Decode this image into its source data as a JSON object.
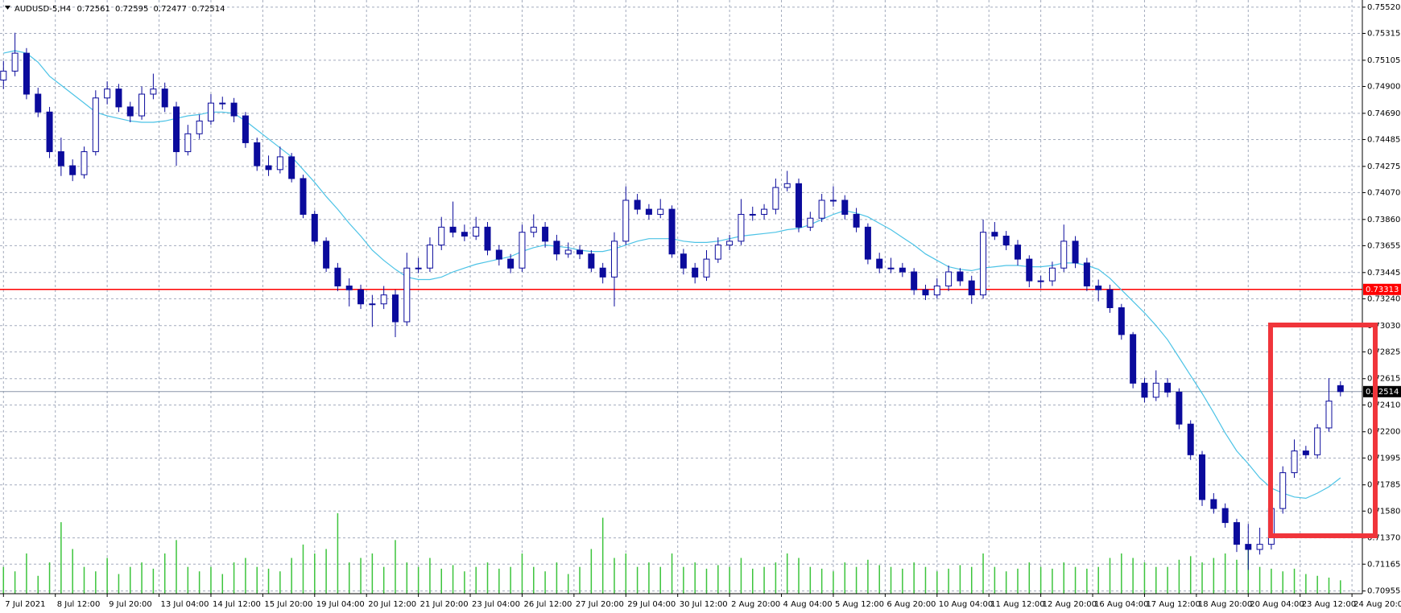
{
  "chart_data": {
    "type": "candlestick",
    "symbol": "AUDUSD-5,H4",
    "grid": true,
    "xlim": [
      -0.3,
      117.9
    ],
    "ylim": [
      0.70934,
      0.75576
    ],
    "xticks": [
      {
        "value": 0,
        "label": "7 Jul 2021"
      },
      {
        "value": 4.5,
        "label": "8 Jul 12:00"
      },
      {
        "value": 9,
        "label": "9 Jul 20:00"
      },
      {
        "value": 13.5,
        "label": "13 Jul 04:00"
      },
      {
        "value": 18,
        "label": "14 Jul 12:00"
      },
      {
        "value": 22.5,
        "label": "15 Jul 20:00"
      },
      {
        "value": 27,
        "label": "19 Jul 04:00"
      },
      {
        "value": 31.5,
        "label": "20 Jul 12:00"
      },
      {
        "value": 36,
        "label": "21 Jul 20:00"
      },
      {
        "value": 40.5,
        "label": "23 Jul 04:00"
      },
      {
        "value": 45,
        "label": "26 Jul 12:00"
      },
      {
        "value": 49.5,
        "label": "27 Jul 20:00"
      },
      {
        "value": 54,
        "label": "29 Jul 04:00"
      },
      {
        "value": 58.5,
        "label": "30 Jul 12:00"
      },
      {
        "value": 63,
        "label": "2 Aug 20:00"
      },
      {
        "value": 67.5,
        "label": "4 Aug 04:00"
      },
      {
        "value": 72,
        "label": "5 Aug 12:00"
      },
      {
        "value": 76.5,
        "label": "6 Aug 20:00"
      },
      {
        "value": 81,
        "label": "10 Aug 04:00"
      },
      {
        "value": 85.5,
        "label": "11 Aug 12:00"
      },
      {
        "value": 90,
        "label": "12 Aug 20:00"
      },
      {
        "value": 94.5,
        "label": "16 Aug 04:00"
      },
      {
        "value": 99,
        "label": "17 Aug 12:00"
      },
      {
        "value": 103.5,
        "label": "18 Aug 20:00"
      },
      {
        "value": 108,
        "label": "20 Aug 04:00"
      },
      {
        "value": 112.5,
        "label": "23 Aug 12:00"
      },
      {
        "value": 117,
        "label": "24 Aug 20:00"
      }
    ],
    "yticks": [
      {
        "value": 0.7552,
        "label": "0.75520"
      },
      0.75315,
      0.75105,
      {
        "value": 0.749,
        "label": "0.74900"
      },
      {
        "value": 0.7469,
        "label": "0.74690"
      },
      0.74485,
      0.74275,
      {
        "value": 0.7407,
        "label": "0.74070"
      },
      {
        "value": 0.7386,
        "label": "0.73860"
      },
      0.73655,
      0.73445,
      {
        "value": 0.7324,
        "label": "0.73240"
      },
      {
        "value": 0.7303,
        "label": "0.73030"
      },
      0.72825,
      0.72615,
      {
        "value": 0.7241,
        "label": "0.72410"
      },
      {
        "value": 0.722,
        "label": "0.72200"
      },
      0.71995,
      0.71785,
      {
        "value": 0.7158,
        "label": "0.71580"
      },
      {
        "value": 0.7137,
        "label": "0.71370"
      },
      0.71165,
      0.70955
    ],
    "bull_color": "#ffffff",
    "bear_color": "#0b0b9c",
    "outline_color": "#0b0b9c",
    "open": [
      0.7495,
      0.7502,
      0.7516,
      0.7484,
      0.747,
      0.7439,
      0.7428,
      0.7421,
      0.7439,
      0.7481,
      0.7488,
      0.7474,
      0.7467,
      0.7484,
      0.7488,
      0.7474,
      0.7439,
      0.7453,
      0.7463,
      0.7477,
      0.7477,
      0.7467,
      0.7446,
      0.7428,
      0.7425,
      0.7435,
      0.7418,
      0.739,
      0.7369,
      0.7348,
      0.7334,
      0.7331,
      0.732,
      0.732,
      0.7327,
      0.7306,
      0.7348,
      0.7348,
      0.7366,
      0.738,
      0.7376,
      0.7373,
      0.738,
      0.7362,
      0.7355,
      0.7348,
      0.7376,
      0.738,
      0.7369,
      0.7359,
      0.7362,
      0.7359,
      0.7348,
      0.7341,
      0.7369,
      0.7401,
      0.7394,
      0.739,
      0.7394,
      0.7359,
      0.7348,
      0.7341,
      0.7355,
      0.7366,
      0.7369,
      0.739,
      0.739,
      0.7394,
      0.7411,
      0.7414,
      0.738,
      0.7387,
      0.7401,
      0.7401,
      0.739,
      0.738,
      0.7355,
      0.7348,
      0.7348,
      0.7345,
      0.7331,
      0.7327,
      0.7334,
      0.7345,
      0.7338,
      0.7327,
      0.7376,
      0.7373,
      0.7366,
      0.7355,
      0.7338,
      0.7338,
      0.7348,
      0.7369,
      0.7352,
      0.7334,
      0.7331,
      0.7317,
      0.7296,
      0.7258,
      0.7247,
      0.7258,
      0.7251,
      0.7226,
      0.7202,
      0.7167,
      0.716,
      0.7149,
      0.7132,
      0.7128,
      0.7132,
      0.716,
      0.7188,
      0.7205,
      0.7202,
      0.7223,
      0.72561
    ],
    "high": [
      0.751,
      0.7532,
      0.752,
      0.7489,
      0.7474,
      0.745,
      0.7433,
      0.7443,
      0.7487,
      0.7494,
      0.7492,
      0.7478,
      0.749,
      0.75,
      0.7493,
      0.7478,
      0.746,
      0.7468,
      0.7484,
      0.7482,
      0.7481,
      0.747,
      0.745,
      0.7436,
      0.7443,
      0.7438,
      0.7421,
      0.7393,
      0.7372,
      0.7352,
      0.734,
      0.7335,
      0.7327,
      0.7334,
      0.7331,
      0.736,
      0.7356,
      0.7372,
      0.7388,
      0.74,
      0.7382,
      0.7388,
      0.7384,
      0.7366,
      0.7359,
      0.7382,
      0.739,
      0.7384,
      0.7374,
      0.7368,
      0.7366,
      0.7362,
      0.7352,
      0.7376,
      0.7412,
      0.7406,
      0.7398,
      0.7402,
      0.7397,
      0.7363,
      0.7352,
      0.7362,
      0.7372,
      0.7374,
      0.7402,
      0.7396,
      0.7398,
      0.7418,
      0.7424,
      0.7418,
      0.7392,
      0.7406,
      0.7412,
      0.7405,
      0.7395,
      0.7383,
      0.736,
      0.7356,
      0.7352,
      0.7348,
      0.7335,
      0.734,
      0.735,
      0.7348,
      0.7342,
      0.7386,
      0.7384,
      0.7377,
      0.737,
      0.7358,
      0.7342,
      0.7353,
      0.7382,
      0.7373,
      0.7356,
      0.7339,
      0.7335,
      0.732,
      0.7298,
      0.7262,
      0.7268,
      0.7262,
      0.7254,
      0.7229,
      0.7205,
      0.7172,
      0.7164,
      0.7152,
      0.7148,
      0.7145,
      0.7166,
      0.7193,
      0.7214,
      0.7209,
      0.7226,
      0.7262,
      0.72595
    ],
    "low": [
      0.7488,
      0.7498,
      0.748,
      0.7466,
      0.7434,
      0.742,
      0.7416,
      0.7418,
      0.7436,
      0.7476,
      0.747,
      0.7462,
      0.7464,
      0.748,
      0.747,
      0.7428,
      0.7436,
      0.7449,
      0.746,
      0.7472,
      0.7462,
      0.7442,
      0.7424,
      0.742,
      0.7422,
      0.7415,
      0.7387,
      0.7366,
      0.7345,
      0.733,
      0.7318,
      0.7316,
      0.7302,
      0.7316,
      0.7294,
      0.7303,
      0.7344,
      0.7345,
      0.7362,
      0.7372,
      0.7369,
      0.737,
      0.7358,
      0.735,
      0.7344,
      0.7345,
      0.7372,
      0.7364,
      0.7354,
      0.7356,
      0.7355,
      0.7345,
      0.7336,
      0.7318,
      0.7366,
      0.739,
      0.7386,
      0.7387,
      0.7356,
      0.7343,
      0.7336,
      0.7338,
      0.7352,
      0.7362,
      0.7366,
      0.7385,
      0.7386,
      0.739,
      0.7408,
      0.7376,
      0.7377,
      0.7384,
      0.7396,
      0.7386,
      0.7376,
      0.7351,
      0.7344,
      0.7344,
      0.7341,
      0.7327,
      0.7323,
      0.7324,
      0.733,
      0.7334,
      0.732,
      0.7324,
      0.737,
      0.7362,
      0.735,
      0.7333,
      0.7332,
      0.7334,
      0.7345,
      0.7348,
      0.733,
      0.7322,
      0.7313,
      0.7292,
      0.7254,
      0.7243,
      0.7244,
      0.7247,
      0.7222,
      0.7198,
      0.7162,
      0.7156,
      0.7145,
      0.7126,
      0.7112,
      0.7124,
      0.7128,
      0.7156,
      0.7184,
      0.7199,
      0.7199,
      0.722,
      0.72477
    ],
    "close": [
      0.7502,
      0.7516,
      0.7484,
      0.747,
      0.7439,
      0.7428,
      0.7421,
      0.7439,
      0.7481,
      0.7488,
      0.7474,
      0.7467,
      0.7484,
      0.7488,
      0.7474,
      0.7439,
      0.7453,
      0.7463,
      0.7477,
      0.7477,
      0.7467,
      0.7446,
      0.7428,
      0.7425,
      0.7435,
      0.7418,
      0.739,
      0.7369,
      0.7348,
      0.7334,
      0.7331,
      0.732,
      0.732,
      0.7327,
      0.7306,
      0.7348,
      0.7348,
      0.7366,
      0.738,
      0.7376,
      0.7373,
      0.738,
      0.7362,
      0.7355,
      0.7348,
      0.7376,
      0.738,
      0.7369,
      0.7359,
      0.7362,
      0.7359,
      0.7348,
      0.7341,
      0.7369,
      0.7401,
      0.7394,
      0.739,
      0.7394,
      0.7359,
      0.7348,
      0.7341,
      0.7355,
      0.7366,
      0.7369,
      0.739,
      0.739,
      0.7394,
      0.7411,
      0.7414,
      0.738,
      0.7387,
      0.7401,
      0.7401,
      0.739,
      0.738,
      0.7355,
      0.7348,
      0.7348,
      0.7345,
      0.7331,
      0.7327,
      0.7334,
      0.7345,
      0.7338,
      0.7327,
      0.7376,
      0.7373,
      0.7366,
      0.7355,
      0.7338,
      0.7338,
      0.7348,
      0.7369,
      0.7352,
      0.7334,
      0.7331,
      0.7317,
      0.7296,
      0.7258,
      0.7247,
      0.7258,
      0.7251,
      0.7226,
      0.7202,
      0.7167,
      0.716,
      0.7149,
      0.7132,
      0.7128,
      0.7132,
      0.716,
      0.7188,
      0.7205,
      0.7202,
      0.7223,
      0.7244,
      0.72514
    ],
    "ma": {
      "color": "#4cc3e6",
      "values": [
        0.7516,
        0.7518,
        0.7516,
        0.7509,
        0.7498,
        0.7491,
        0.7484,
        0.7477,
        0.747,
        0.7467,
        0.7465,
        0.7463,
        0.7462,
        0.7462,
        0.7463,
        0.7465,
        0.7467,
        0.7468,
        0.747,
        0.747,
        0.7469,
        0.7463,
        0.7456,
        0.7449,
        0.7442,
        0.7435,
        0.7425,
        0.7415,
        0.7404,
        0.7394,
        0.7383,
        0.7373,
        0.7362,
        0.7354,
        0.7347,
        0.7341,
        0.7339,
        0.7339,
        0.7341,
        0.7345,
        0.7348,
        0.7351,
        0.7353,
        0.7355,
        0.7357,
        0.7361,
        0.7364,
        0.7366,
        0.7365,
        0.7364,
        0.7362,
        0.7361,
        0.7361,
        0.7363,
        0.7366,
        0.7369,
        0.7371,
        0.7371,
        0.7371,
        0.7369,
        0.7368,
        0.7368,
        0.7369,
        0.7371,
        0.7373,
        0.7374,
        0.7375,
        0.7376,
        0.7378,
        0.7379,
        0.7382,
        0.7386,
        0.739,
        0.7393,
        0.7391,
        0.7388,
        0.7383,
        0.7378,
        0.7372,
        0.7366,
        0.7359,
        0.7354,
        0.7349,
        0.7347,
        0.7346,
        0.7348,
        0.7349,
        0.735,
        0.735,
        0.7349,
        0.7349,
        0.735,
        0.7352,
        0.7352,
        0.735,
        0.7347,
        0.734,
        0.7331,
        0.7322,
        0.7313,
        0.7303,
        0.7292,
        0.7278,
        0.7264,
        0.725,
        0.7235,
        0.7219,
        0.7205,
        0.7195,
        0.7184,
        0.7176,
        0.7172,
        0.7169,
        0.7168,
        0.7172,
        0.7177,
        0.7184
      ]
    },
    "volume": {
      "color": "#3cc43c",
      "values": [
        30,
        25,
        45,
        20,
        35,
        80,
        50,
        30,
        25,
        40,
        22,
        30,
        35,
        28,
        45,
        60,
        30,
        25,
        30,
        22,
        35,
        40,
        30,
        28,
        25,
        40,
        55,
        45,
        50,
        90,
        35,
        40,
        45,
        30,
        60,
        35,
        30,
        40,
        28,
        32,
        25,
        30,
        35,
        28,
        30,
        45,
        30,
        25,
        35,
        22,
        30,
        50,
        85,
        40,
        45,
        30,
        35,
        30,
        45,
        30,
        35,
        28,
        32,
        30,
        40,
        28,
        30,
        35,
        45,
        40,
        30,
        28,
        25,
        35,
        30,
        38,
        32,
        30,
        28,
        35,
        30,
        25,
        28,
        32,
        30,
        45,
        30,
        25,
        28,
        35,
        30,
        28,
        35,
        30,
        28,
        30,
        40,
        45,
        40,
        35,
        30,
        30,
        38,
        42,
        35,
        40,
        45,
        38,
        50,
        30,
        28,
        25,
        28,
        22,
        20,
        18,
        15
      ]
    },
    "hlines": [
      {
        "value": 0.73313,
        "color": "#ff0000"
      }
    ],
    "last_price_color": "#8a96a8"
  }
}
